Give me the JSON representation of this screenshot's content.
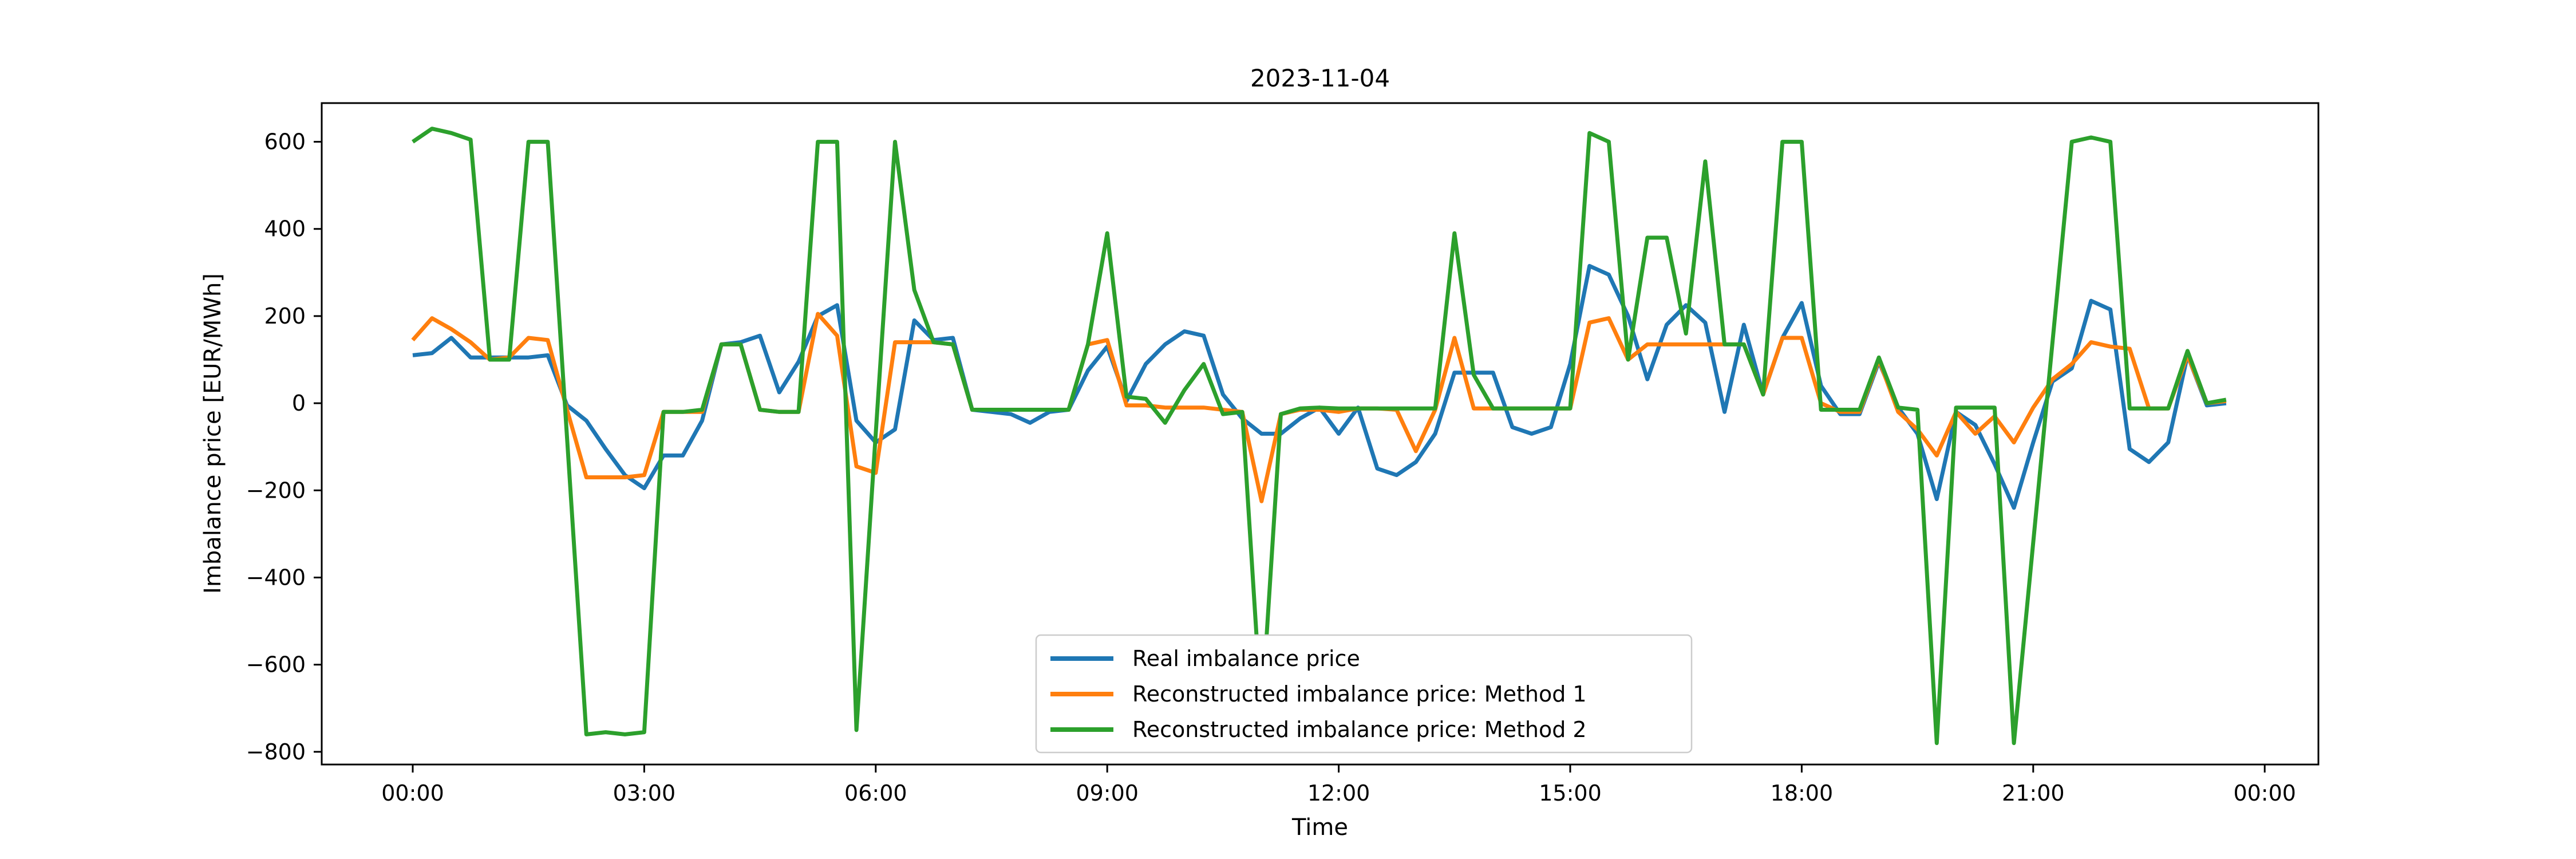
{
  "chart_data": {
    "type": "line",
    "title": "2023-11-04",
    "xlabel": "Time",
    "ylabel": "Imbalance price [EUR/MWh]",
    "grid": false,
    "legend_position": "lower center",
    "x_start_hour": 0,
    "x_step_hours": 0.25,
    "x_points": 95,
    "x_tick_hours": [
      0,
      3,
      6,
      9,
      12,
      15,
      18,
      21,
      24
    ],
    "x_tick_labels": [
      "00:00",
      "03:00",
      "06:00",
      "09:00",
      "12:00",
      "15:00",
      "18:00",
      "21:00",
      "00:00"
    ],
    "y_tick_values": [
      600,
      400,
      200,
      0,
      -200,
      -400,
      -600,
      -800
    ],
    "y_tick_labels": [
      "600",
      "400",
      "200",
      "0",
      "−200",
      "−400",
      "−600",
      "−800"
    ],
    "ylim": [
      -829,
      689
    ],
    "xlim_hours": [
      -1.18,
      24.68
    ],
    "series": [
      {
        "name": "Real imbalance price",
        "color": "#1f77b4",
        "values": [
          110,
          115,
          150,
          105,
          105,
          105,
          105,
          110,
          -5,
          -40,
          -105,
          -165,
          -195,
          -120,
          -120,
          -40,
          135,
          140,
          155,
          25,
          95,
          200,
          225,
          -40,
          -90,
          -60,
          190,
          145,
          150,
          -15,
          -20,
          -25,
          -45,
          -20,
          -15,
          75,
          130,
          5,
          90,
          135,
          165,
          155,
          20,
          -35,
          -70,
          -70,
          -35,
          -10,
          -70,
          -10,
          -150,
          -165,
          -135,
          -70,
          70,
          70,
          70,
          -55,
          -70,
          -55,
          90,
          315,
          295,
          200,
          55,
          180,
          225,
          185,
          -20,
          180,
          20,
          150,
          230,
          40,
          -25,
          -25,
          95,
          -10,
          -70,
          -220,
          -20,
          -50,
          -140,
          -240,
          -90,
          50,
          80,
          235,
          215,
          -105,
          -135,
          -90,
          110,
          -5,
          0
        ]
      },
      {
        "name": "Reconstructed imbalance price: Method 1",
        "color": "#ff7f0e",
        "values": [
          145,
          195,
          170,
          140,
          100,
          105,
          150,
          145,
          -15,
          -170,
          -170,
          -170,
          -165,
          -20,
          -20,
          -20,
          135,
          135,
          -15,
          -20,
          -20,
          205,
          155,
          -145,
          -160,
          140,
          140,
          140,
          135,
          -15,
          -15,
          -15,
          -15,
          -15,
          -15,
          135,
          145,
          -5,
          -5,
          -10,
          -10,
          -10,
          -15,
          -20,
          -225,
          -25,
          -15,
          -15,
          -20,
          -12,
          -12,
          -15,
          -110,
          -15,
          150,
          -12,
          -12,
          -12,
          -12,
          -12,
          -12,
          185,
          195,
          100,
          135,
          135,
          135,
          135,
          135,
          135,
          20,
          150,
          150,
          0,
          -20,
          -20,
          100,
          -20,
          -60,
          -120,
          -20,
          -70,
          -30,
          -90,
          -10,
          55,
          90,
          140,
          130,
          125,
          -12,
          -12,
          110,
          0,
          5
        ]
      },
      {
        "name": "Reconstructed imbalance price: Method 2",
        "color": "#2ca02c",
        "values": [
          600,
          630,
          620,
          605,
          100,
          100,
          600,
          600,
          -80,
          -760,
          -755,
          -760,
          -755,
          -20,
          -20,
          -15,
          135,
          135,
          -15,
          -20,
          -20,
          600,
          600,
          -750,
          -70,
          600,
          260,
          140,
          135,
          -15,
          -15,
          -15,
          -15,
          -15,
          -15,
          135,
          390,
          15,
          10,
          -45,
          30,
          90,
          -25,
          -20,
          -715,
          -25,
          -12,
          -10,
          -12,
          -12,
          -12,
          -12,
          -12,
          -12,
          390,
          65,
          -12,
          -12,
          -12,
          -12,
          -12,
          620,
          600,
          100,
          380,
          380,
          160,
          555,
          135,
          135,
          20,
          600,
          600,
          -15,
          -15,
          -15,
          105,
          -10,
          -15,
          -780,
          -10,
          -10,
          -10,
          -780,
          -320,
          140,
          600,
          610,
          600,
          -12,
          -12,
          -12,
          120,
          0,
          8
        ]
      }
    ]
  }
}
